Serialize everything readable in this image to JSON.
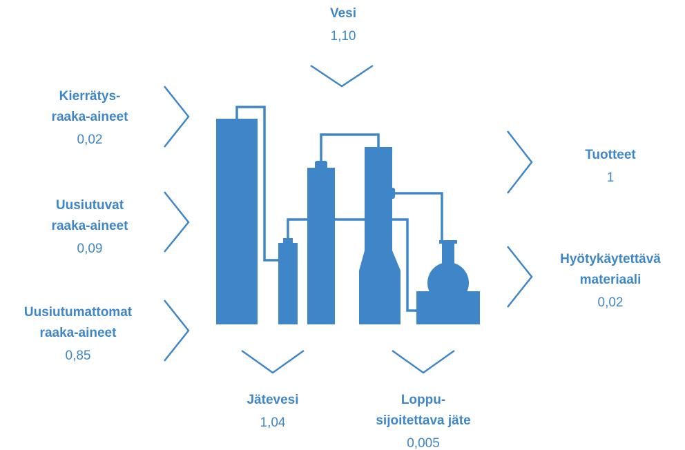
{
  "top": {
    "label": [
      "Vesi"
    ],
    "value": "1,10"
  },
  "inputs": [
    {
      "label": [
        "Kierrätys-",
        "raaka-aineet"
      ],
      "value": "0,02"
    },
    {
      "label": [
        "Uusiutuvat",
        "raaka-aineet"
      ],
      "value": "0,09"
    },
    {
      "label": [
        "Uusiutumattomat",
        "raaka-aineet"
      ],
      "value": "0,85"
    }
  ],
  "outputs": [
    {
      "label": [
        "Tuotteet"
      ],
      "value": "1"
    },
    {
      "label": [
        "Hyötykäytettävä",
        "materiaali"
      ],
      "value": "0,02"
    }
  ],
  "bottom": [
    {
      "label": [
        "Jätevesi"
      ],
      "value": "1,04"
    },
    {
      "label": [
        "Loppu-",
        "sijoitettava jäte"
      ],
      "value": "0,005"
    }
  ]
}
